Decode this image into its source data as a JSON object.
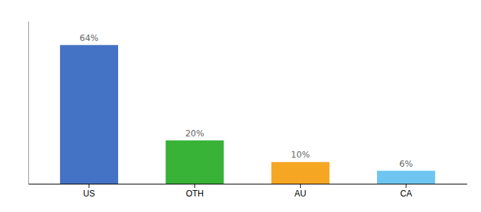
{
  "chart_data": {
    "type": "bar",
    "categories": [
      "US",
      "OTH",
      "AU",
      "CA"
    ],
    "values": [
      64,
      20,
      10,
      6
    ],
    "value_labels": [
      "64%",
      "20%",
      "10%",
      "6%"
    ],
    "colors": [
      "#4472c4",
      "#38b237",
      "#f5a623",
      "#6ec6f0"
    ],
    "ylim": [
      0,
      75
    ],
    "data_labels": true,
    "tick_labels": "x"
  }
}
